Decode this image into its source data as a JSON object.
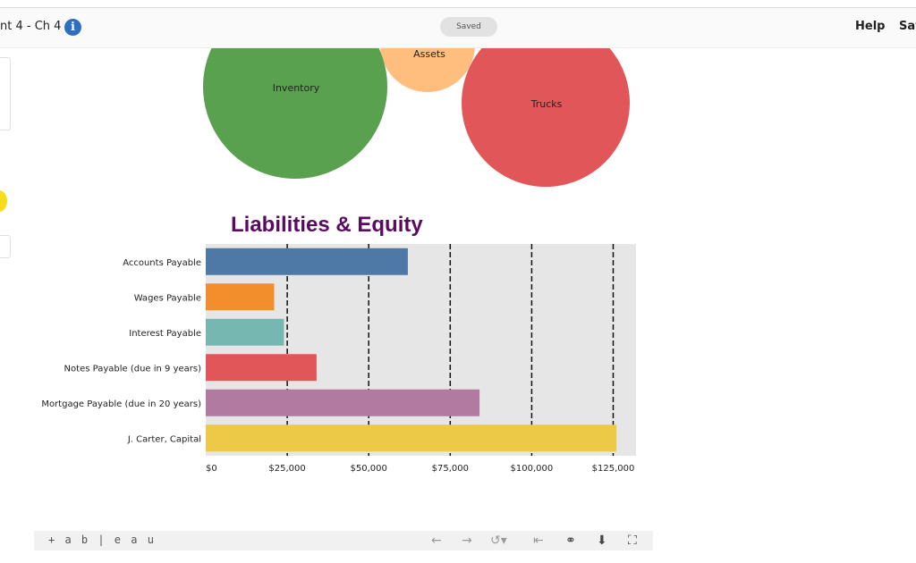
{
  "header": {
    "title": "nt 4 - Ch 4",
    "info_icon": "info-icon",
    "saved_label": "Saved",
    "help_label": "Help",
    "save_label": "Sav"
  },
  "bubbles": [
    {
      "label": "Inventory",
      "color": "#59a14f"
    },
    {
      "label": "Assets",
      "color": "#ffbe7d"
    },
    {
      "label": "Trucks",
      "color": "#e15759"
    }
  ],
  "chart_data": {
    "type": "bar",
    "orientation": "horizontal",
    "title": "Liabilities & Equity",
    "categories": [
      "Accounts Payable",
      "Wages Payable",
      "Interest Payable",
      "Notes Payable (due in 9 years)",
      "Mortgage Payable (due in 20 years)",
      "J. Carter, Capital"
    ],
    "values": [
      62000,
      21000,
      24000,
      34000,
      84000,
      126000
    ],
    "colors": [
      "#4e79a7",
      "#f28e2b",
      "#76b7b2",
      "#e15759",
      "#b07aa1",
      "#edc948"
    ],
    "xlim": [
      0,
      132000
    ],
    "xticks": [
      0,
      25000,
      50000,
      75000,
      100000,
      125000
    ],
    "xtick_labels": [
      "$0",
      "$25,000",
      "$50,000",
      "$75,000",
      "$100,000",
      "$125,000"
    ],
    "grid": "vertical dashed",
    "xlabel": "",
    "ylabel": ""
  },
  "toolbar": {
    "logo_text": "+ a b | e a u",
    "icons": [
      "undo-icon",
      "redo-icon",
      "revert-icon",
      "reset-icon",
      "share-icon",
      "download-icon",
      "fullscreen-icon"
    ]
  }
}
